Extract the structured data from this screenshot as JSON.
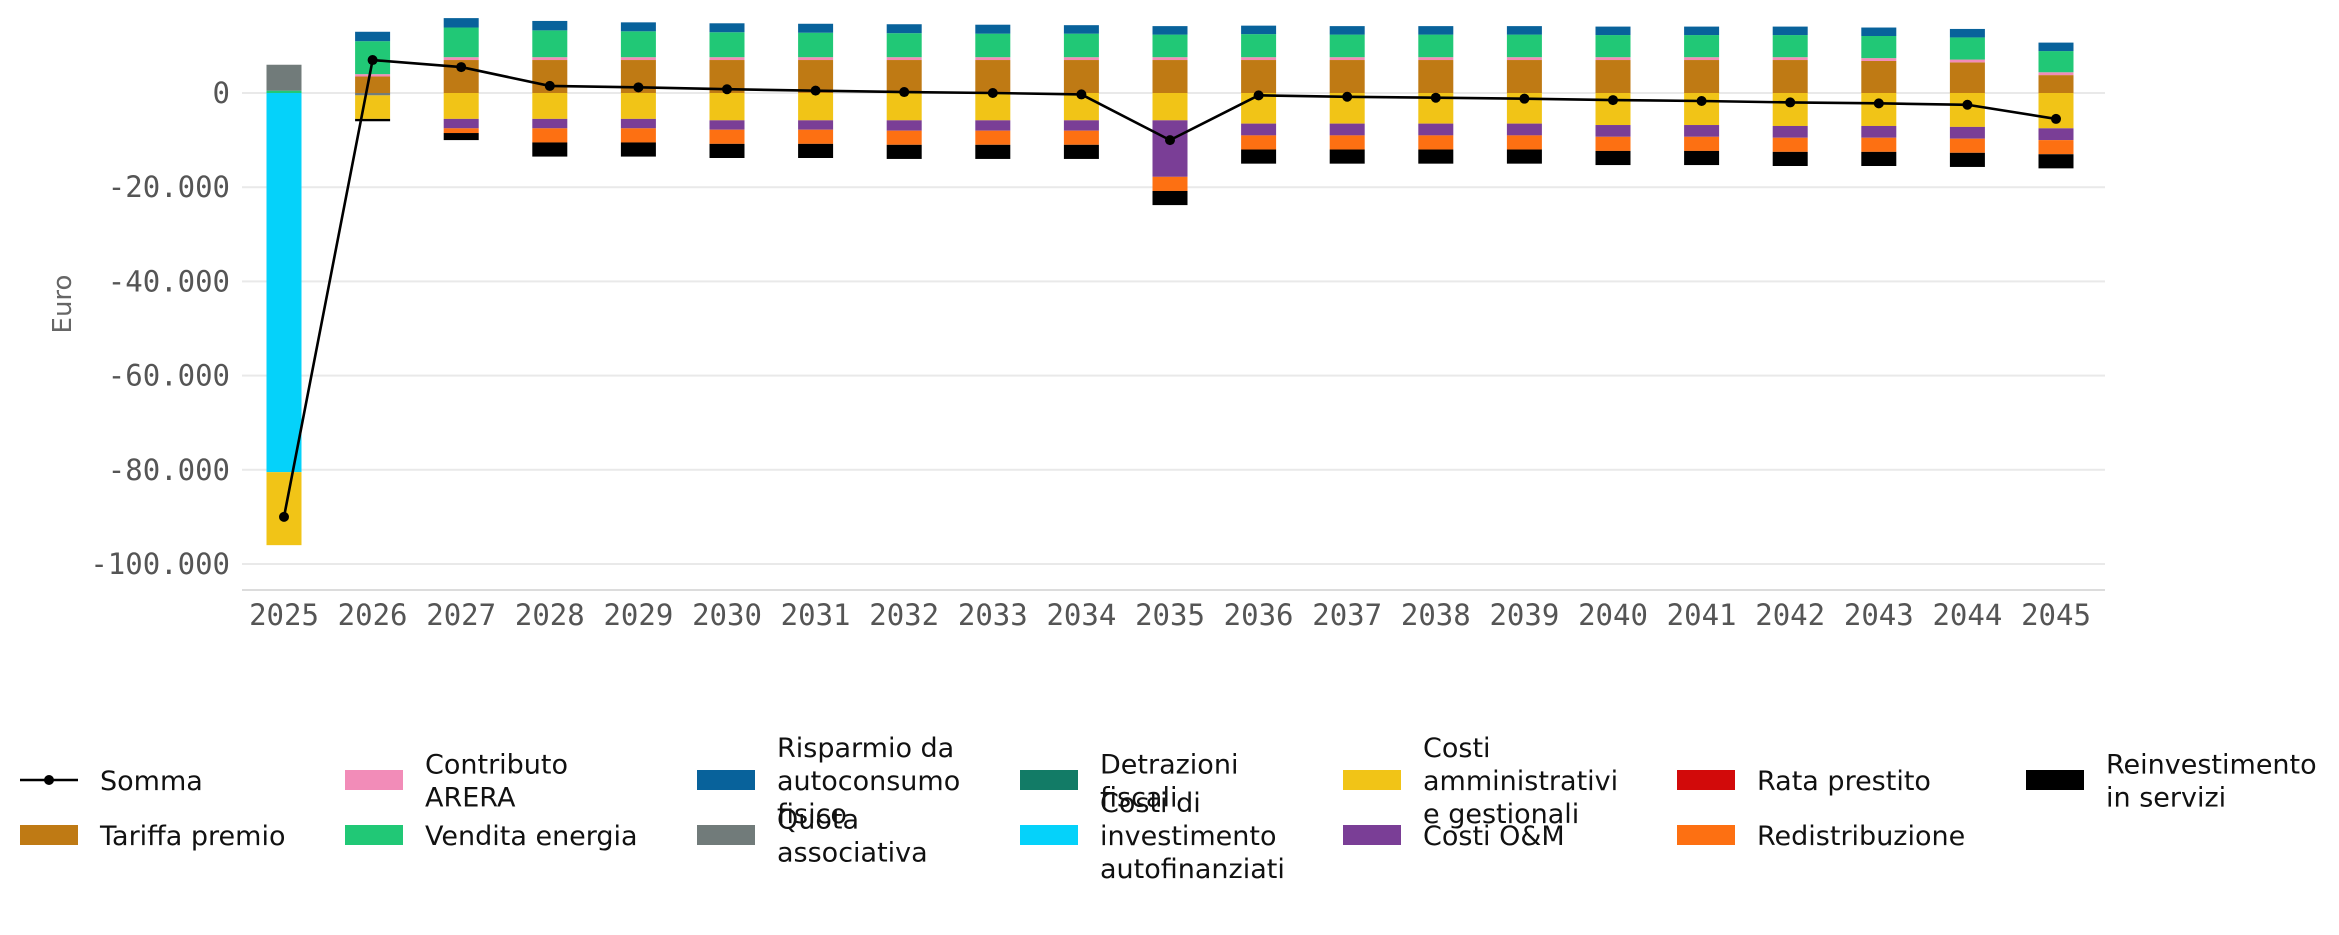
{
  "chart_data": {
    "type": "bar",
    "stacked": true,
    "title": "",
    "xlabel": "",
    "ylabel": "Euro",
    "ylim": [
      -105000,
      16500
    ],
    "yticks": [
      {
        "value": 0,
        "label": "0"
      },
      {
        "value": -20000,
        "label": "-20.000"
      },
      {
        "value": -40000,
        "label": "-40.000"
      },
      {
        "value": -60000,
        "label": "-60.000"
      },
      {
        "value": -80000,
        "label": "-80.000"
      },
      {
        "value": -100000,
        "label": "-100.000"
      }
    ],
    "grid": true,
    "legend_position": "bottom",
    "categories": [
      "2025",
      "2026",
      "2027",
      "2028",
      "2029",
      "2030",
      "2031",
      "2032",
      "2033",
      "2034",
      "2035",
      "2036",
      "2037",
      "2038",
      "2039",
      "2040",
      "2041",
      "2042",
      "2043",
      "2044",
      "2045"
    ],
    "series": [
      {
        "key": "tariffa",
        "name": "Tariffa premio",
        "color": "#bf7a14",
        "values": [
          0,
          3500,
          7000,
          7000,
          7000,
          7000,
          7000,
          7000,
          7000,
          7000,
          7000,
          7000,
          7000,
          7000,
          7000,
          7000,
          7000,
          7000,
          6800,
          6500,
          3800
        ]
      },
      {
        "key": "arera",
        "name": "Contributo ARERA",
        "color": "#f28cb8",
        "values": [
          0,
          500,
          600,
          600,
          600,
          600,
          600,
          600,
          600,
          600,
          600,
          600,
          600,
          600,
          600,
          600,
          600,
          600,
          600,
          600,
          600
        ]
      },
      {
        "key": "vendita",
        "name": "Vendita energia",
        "color": "#21c876",
        "values": [
          500,
          7000,
          6300,
          5700,
          5500,
          5300,
          5200,
          5100,
          5000,
          5000,
          4800,
          4900,
          4800,
          4800,
          4800,
          4700,
          4700,
          4700,
          4700,
          4700,
          4500
        ]
      },
      {
        "key": "risparmio",
        "name": "Risparmio da autoconsumo fisico",
        "color": "#08629b",
        "values": [
          0,
          2000,
          2000,
          2000,
          1900,
          1900,
          1900,
          1900,
          1900,
          1800,
          1800,
          1800,
          1800,
          1800,
          1800,
          1800,
          1800,
          1800,
          1800,
          1800,
          1800
        ]
      },
      {
        "key": "quota",
        "name": "Quota associativa",
        "color": "#717b7a",
        "values": [
          5500,
          -500,
          0,
          0,
          0,
          0,
          0,
          0,
          0,
          0,
          0,
          0,
          0,
          0,
          0,
          0,
          0,
          0,
          0,
          0,
          0
        ]
      },
      {
        "key": "detrazioni",
        "name": "Detrazioni fiscali",
        "color": "#127b66",
        "values": [
          0,
          0,
          0,
          0,
          0,
          0,
          0,
          0,
          0,
          0,
          0,
          0,
          0,
          0,
          0,
          0,
          0,
          0,
          0,
          0,
          0
        ]
      },
      {
        "key": "investimento",
        "name": "Costi di investimento autofinanziati",
        "color": "#05d2fa",
        "values": [
          -80500,
          0,
          0,
          0,
          0,
          0,
          0,
          0,
          0,
          0,
          0,
          0,
          0,
          0,
          0,
          0,
          0,
          0,
          0,
          0,
          0
        ]
      },
      {
        "key": "amministrativi",
        "name": "Costi amministrativi e gestionali",
        "color": "#f1c417",
        "values": [
          -15500,
          -5000,
          -5500,
          -5500,
          -5500,
          -5800,
          -5800,
          -5800,
          -5800,
          -5800,
          -5800,
          -6500,
          -6500,
          -6500,
          -6500,
          -6800,
          -6800,
          -7000,
          -7000,
          -7200,
          -7500
        ]
      },
      {
        "key": "om",
        "name": "Costi O&M",
        "color": "#7a3e96",
        "values": [
          0,
          0,
          -2000,
          -2000,
          -2000,
          -2000,
          -2000,
          -2200,
          -2200,
          -2200,
          -12000,
          -2500,
          -2500,
          -2500,
          -2500,
          -2500,
          -2500,
          -2500,
          -2500,
          -2500,
          -2500
        ]
      },
      {
        "key": "rata",
        "name": "Rata prestito",
        "color": "#d20a0a",
        "values": [
          0,
          0,
          0,
          0,
          0,
          0,
          0,
          0,
          0,
          0,
          0,
          0,
          0,
          0,
          0,
          0,
          0,
          0,
          0,
          0,
          0
        ]
      },
      {
        "key": "redistribuzione",
        "name": "Redistribuzione",
        "color": "#fd7012",
        "values": [
          0,
          0,
          -1000,
          -3000,
          -3000,
          -3000,
          -3000,
          -3000,
          -3000,
          -3000,
          -3000,
          -3000,
          -3000,
          -3000,
          -3000,
          -3000,
          -3000,
          -3000,
          -3000,
          -3000,
          -3000
        ]
      },
      {
        "key": "reinvestimento",
        "name": "Reinvestimento in servizi",
        "color": "#000000",
        "values": [
          0,
          -500,
          -1500,
          -3000,
          -3000,
          -3000,
          -3000,
          -3000,
          -3000,
          -3000,
          -3000,
          -3000,
          -3000,
          -3000,
          -3000,
          -3000,
          -3000,
          -3000,
          -3000,
          -3000,
          -3000
        ]
      }
    ],
    "line": {
      "name": "Somma",
      "color": "#000000",
      "values": [
        -90000,
        7000,
        5500,
        1500,
        1200,
        800,
        500,
        200,
        0,
        -300,
        -10000,
        -500,
        -800,
        -1000,
        -1200,
        -1500,
        -1700,
        -2000,
        -2200,
        -2500,
        -5500
      ]
    },
    "legend": [
      {
        "series": "line",
        "text": [
          "Somma"
        ]
      },
      {
        "series": "tariffa",
        "text": [
          "Tariffa premio"
        ]
      },
      {
        "series": "arera",
        "text": [
          "Contributo",
          "ARERA"
        ]
      },
      {
        "series": "vendita",
        "text": [
          "Vendita energia"
        ]
      },
      {
        "series": "risparmio",
        "text": [
          "Risparmio da",
          "autoconsumo",
          "fisico"
        ]
      },
      {
        "series": "quota",
        "text": [
          "Quota",
          "associativa"
        ]
      },
      {
        "series": "detrazioni",
        "text": [
          "Detrazioni",
          "fiscali"
        ]
      },
      {
        "series": "investimento",
        "text": [
          "Costi di",
          "investimento",
          "autofinanziati"
        ]
      },
      {
        "series": "amministrativi",
        "text": [
          "Costi",
          "amministrativi",
          "e gestionali"
        ]
      },
      {
        "series": "om",
        "text": [
          "Costi O&M"
        ]
      },
      {
        "series": "rata",
        "text": [
          "Rata prestito"
        ]
      },
      {
        "series": "redistribuzione",
        "text": [
          "Redistribuzione"
        ]
      },
      {
        "series": "reinvestimento",
        "text": [
          "Reinvestimento",
          "in servizi"
        ]
      }
    ]
  }
}
